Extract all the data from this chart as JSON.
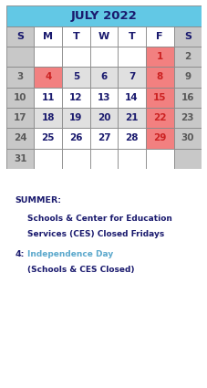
{
  "title": "JULY 2022",
  "title_bg": "#62c8e5",
  "title_color": "#1a1a6e",
  "days_header": [
    "S",
    "M",
    "T",
    "W",
    "T",
    "F",
    "S"
  ],
  "weeks": [
    [
      "",
      "",
      "",
      "",
      "",
      "1",
      "2"
    ],
    [
      "3",
      "4",
      "5",
      "6",
      "7",
      "8",
      "9"
    ],
    [
      "10",
      "11",
      "12",
      "13",
      "14",
      "15",
      "16"
    ],
    [
      "17",
      "18",
      "19",
      "20",
      "21",
      "22",
      "23"
    ],
    [
      "24",
      "25",
      "26",
      "27",
      "28",
      "29",
      "30"
    ],
    [
      "31",
      "",
      "",
      "",
      "",
      "",
      ""
    ]
  ],
  "cell_colors": {
    "0_5": "#f28080",
    "1_1": "#f28080",
    "1_5": "#f28080",
    "2_5": "#f28080",
    "3_5": "#f28080",
    "4_5": "#f28080"
  },
  "col_bg_sunday": "#c8c8c8",
  "row_bg_alt": "#e0e0e0",
  "row_bg_white": "#ffffff",
  "last_row_bg_middle": "#ffffff",
  "last_row_bg_end": "#c8c8c8",
  "header_bg_smtwtf": "#ffffff",
  "header_bg_s2": "#c8c8c8",
  "text_normal": "#5a5a5a",
  "text_header": "#1a1a6e",
  "text_pink_cell": "#cc2222",
  "border_color": "#888888",
  "note_summer_color": "#1a1a6e",
  "note_body_color": "#1a1a6e",
  "note_4_label_color": "#1a1a6e",
  "note_indep_color": "#5ba8cc",
  "note_closed_color": "#1a1a6e"
}
